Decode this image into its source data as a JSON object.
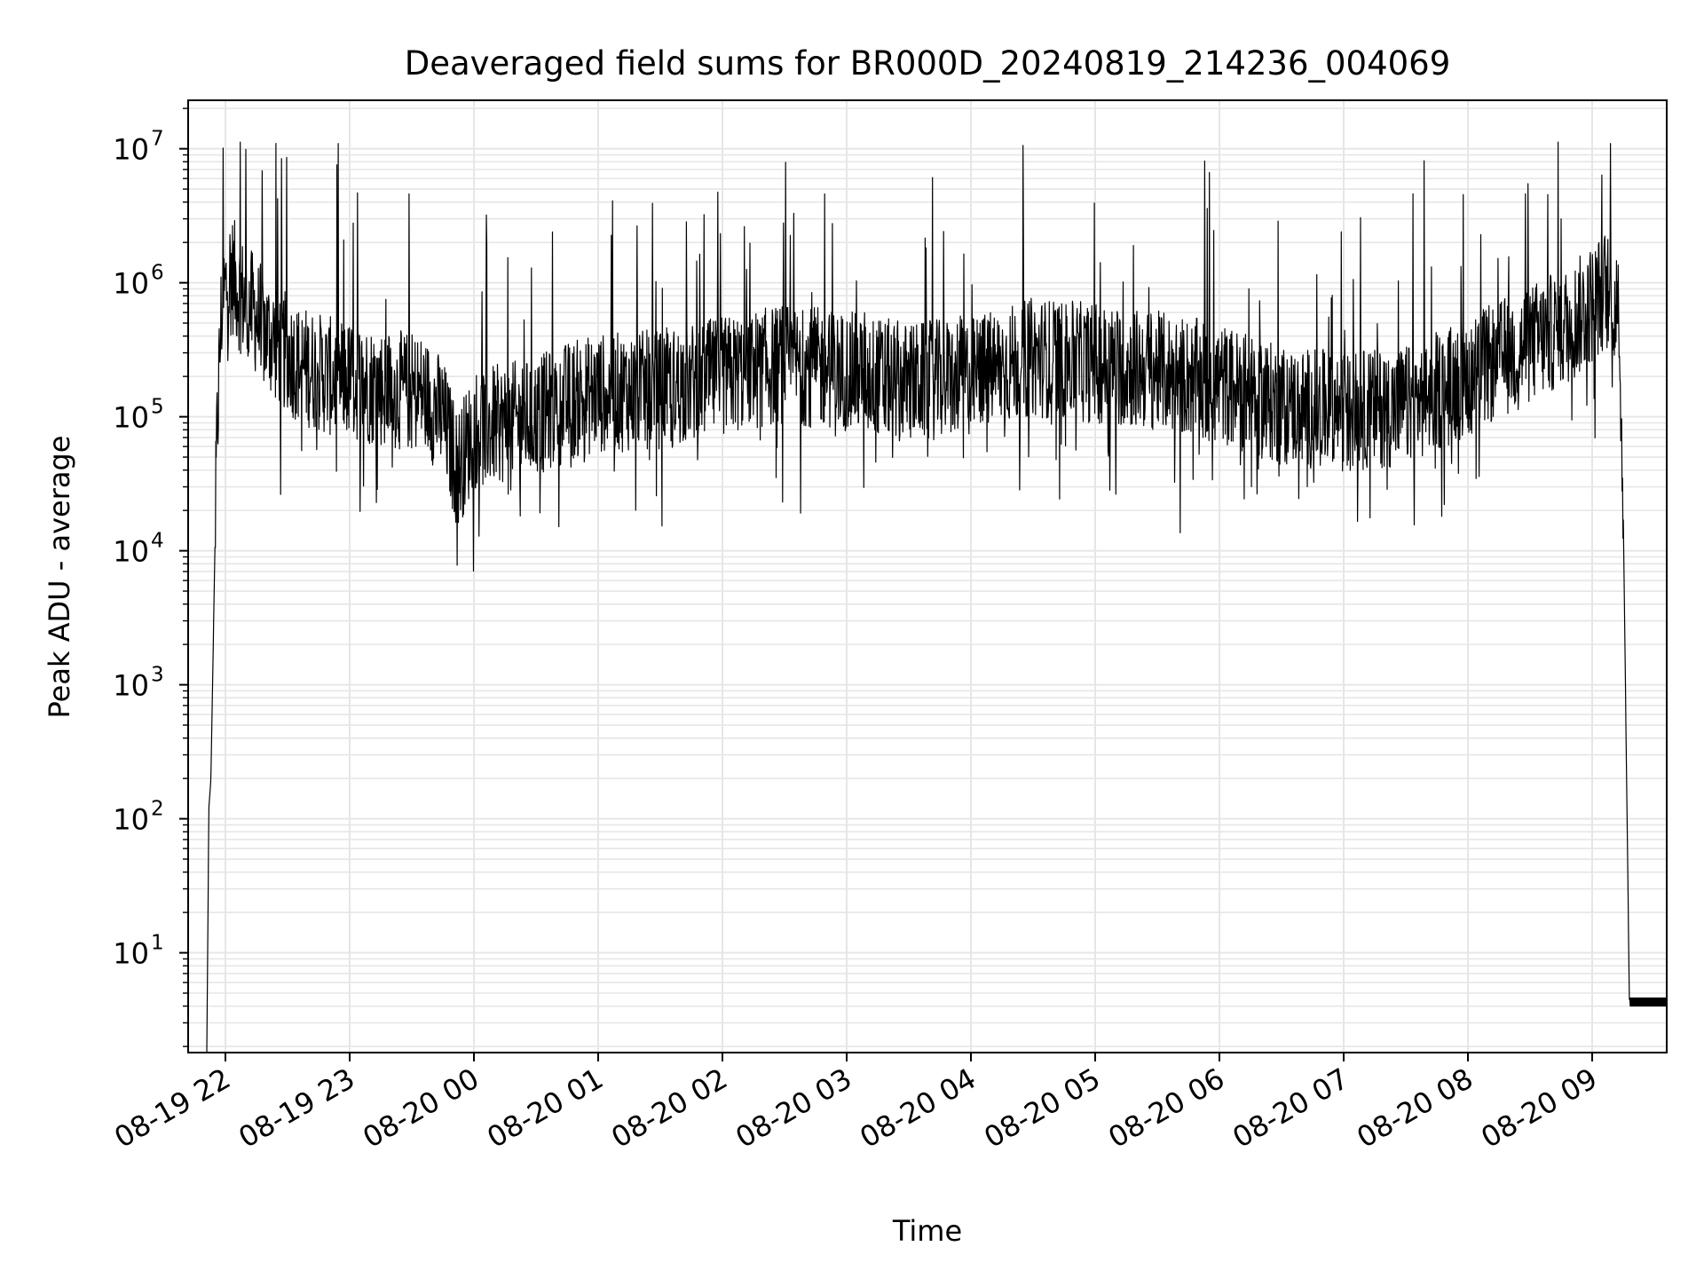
{
  "chart_data": {
    "type": "line",
    "title": "Deaveraged field sums for BR000D_20240819_214236_004069",
    "xlabel": "Time",
    "ylabel": "Peak ADU - average",
    "xscale": "time",
    "yscale": "log",
    "grid": true,
    "legend": "none",
    "line_color": "#000000",
    "grid_color": "#e6e6e6",
    "xlim": [
      "2024-08-19 21:42",
      "2024-08-20 09:36"
    ],
    "ylim": [
      1.8,
      23000000
    ],
    "x_ticks": [
      "08-19 22",
      "08-19 23",
      "08-20 00",
      "08-20 01",
      "08-20 02",
      "08-20 03",
      "08-20 04",
      "08-20 05",
      "08-20 06",
      "08-20 07",
      "08-20 08",
      "08-20 09"
    ],
    "y_ticks": [
      {
        "value": 10,
        "base": "10",
        "exp": "1"
      },
      {
        "value": 100,
        "base": "10",
        "exp": "2"
      },
      {
        "value": 1000,
        "base": "10",
        "exp": "3"
      },
      {
        "value": 10000,
        "base": "10",
        "exp": "4"
      },
      {
        "value": 100000,
        "base": "10",
        "exp": "5"
      },
      {
        "value": 1000000,
        "base": "10",
        "exp": "6"
      },
      {
        "value": 10000000,
        "base": "10",
        "exp": "7"
      }
    ],
    "series": [
      {
        "x": [
          "2024-08-19 21:51",
          "2024-08-19 21:52",
          "2024-08-19 21:53",
          "2024-08-19 21:55",
          "2024-08-19 21:56",
          "2024-08-19 21:58",
          "2024-08-19 22:00",
          "2024-08-19 22:03",
          "2024-08-19 22:06",
          "2024-08-19 22:10",
          "2024-08-19 22:14",
          "2024-08-19 22:18",
          "2024-08-19 22:25",
          "2024-08-19 22:35",
          "2024-08-19 22:50",
          "2024-08-19 23:05",
          "2024-08-19 23:20",
          "2024-08-19 23:35",
          "2024-08-19 23:45",
          "2024-08-19 23:52",
          "2024-08-20 00:00",
          "2024-08-20 00:15",
          "2024-08-20 00:30",
          "2024-08-20 00:45",
          "2024-08-20 01:00",
          "2024-08-20 01:30",
          "2024-08-20 02:00",
          "2024-08-20 02:30",
          "2024-08-20 03:00",
          "2024-08-20 03:30",
          "2024-08-20 04:00",
          "2024-08-20 04:30",
          "2024-08-20 05:00",
          "2024-08-20 05:30",
          "2024-08-20 06:00",
          "2024-08-20 06:30",
          "2024-08-20 07:00",
          "2024-08-20 07:30",
          "2024-08-20 08:00",
          "2024-08-20 08:30",
          "2024-08-20 08:50",
          "2024-08-20 09:00",
          "2024-08-20 09:06",
          "2024-08-20 09:10",
          "2024-08-20 09:13",
          "2024-08-20 09:15",
          "2024-08-20 09:18",
          "2024-08-20 09:36"
        ],
        "y": [
          1.8,
          120,
          200,
          12000,
          80000,
          600000,
          900000,
          1200000,
          900000,
          700000,
          600000,
          450000,
          350000,
          250000,
          200000,
          180000,
          160000,
          150000,
          100000,
          40000,
          80000,
          90000,
          100000,
          130000,
          150000,
          160000,
          200000,
          250000,
          220000,
          180000,
          200000,
          280000,
          250000,
          220000,
          180000,
          120000,
          110000,
          120000,
          200000,
          350000,
          500000,
          700000,
          900000,
          800000,
          500000,
          20000,
          4,
          4
        ]
      }
    ]
  }
}
